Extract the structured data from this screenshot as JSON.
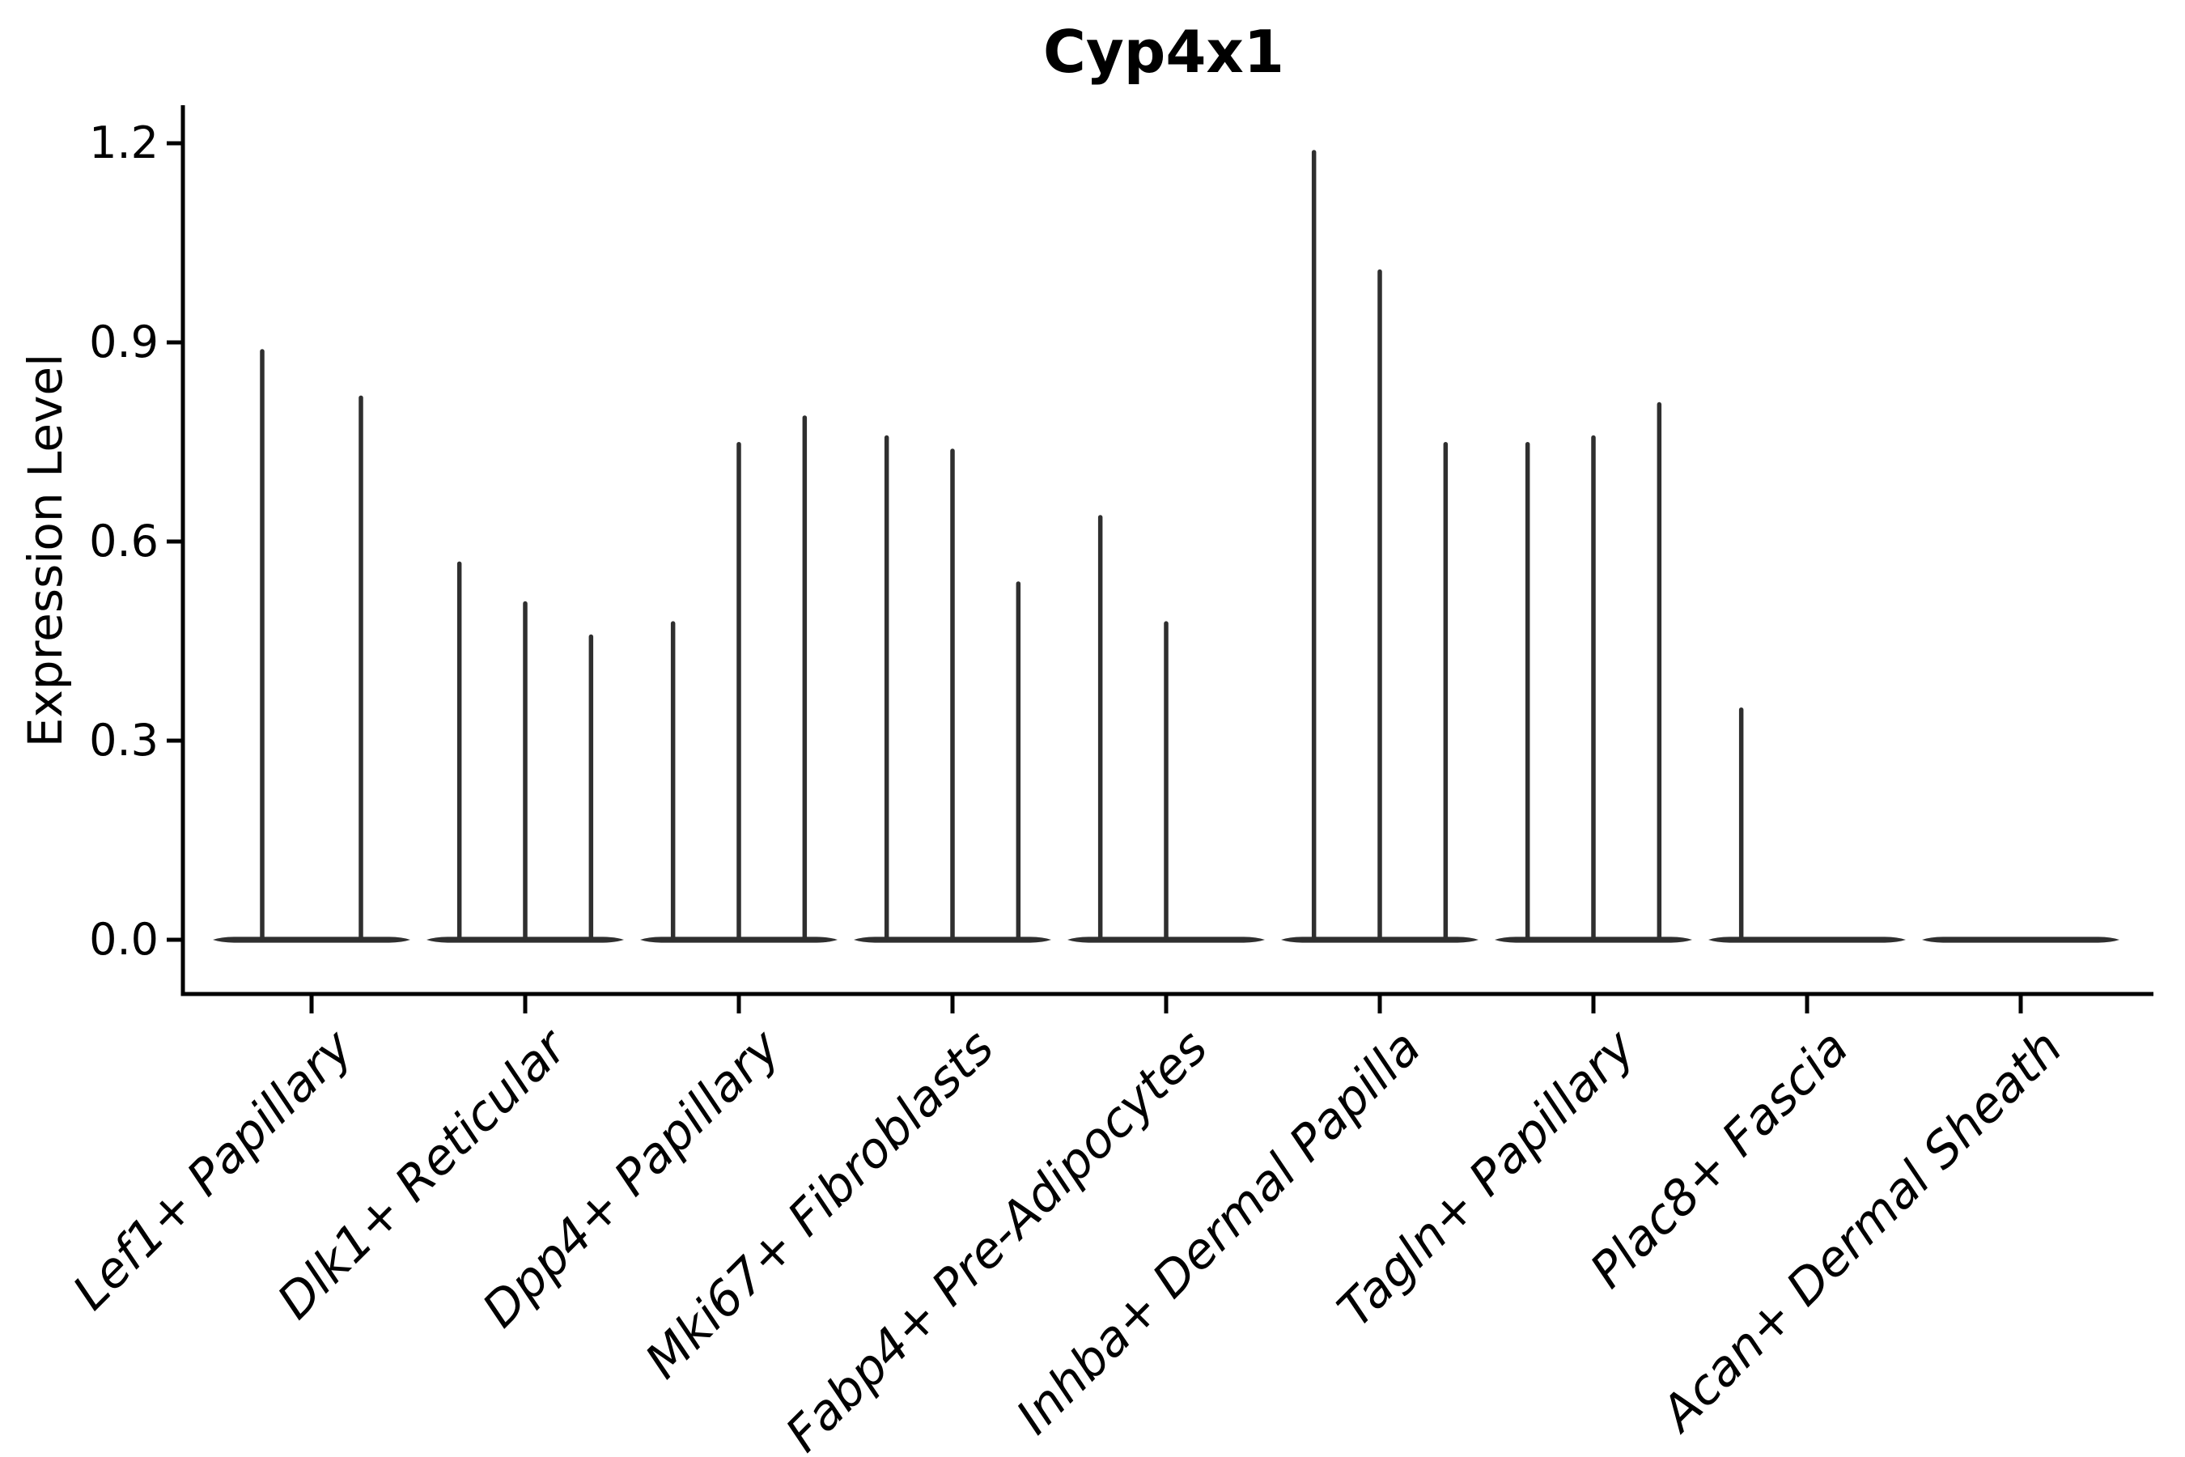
{
  "figure": {
    "background": "#ffffff"
  },
  "chart_data": {
    "type": "violin",
    "title": "Cyp4x1",
    "ylabel": "Expression Level",
    "xlabel": "",
    "ylim": [
      0,
      1.26
    ],
    "grid": false,
    "legend": "none",
    "ink_color": "#000000",
    "violin_color": "#2f2f2f",
    "yticks": [
      {
        "value": 0.0,
        "label": "0.0"
      },
      {
        "value": 0.3,
        "label": "0.3"
      },
      {
        "value": 0.6,
        "label": "0.6"
      },
      {
        "value": 0.9,
        "label": "0.9"
      },
      {
        "value": 1.2,
        "label": "1.2"
      }
    ],
    "categories": [
      {
        "label": "Lef1+ Papillary",
        "violin_maxima": [
          0.89,
          0.82
        ]
      },
      {
        "label": "Dlk1+ Reticular",
        "violin_maxima": [
          0.57,
          0.51,
          0.46
        ]
      },
      {
        "label": "Dpp4+ Papillary",
        "violin_maxima": [
          0.48,
          0.75,
          0.79
        ]
      },
      {
        "label": "Mki67+ Fibroblasts",
        "violin_maxima": [
          0.76,
          0.74,
          0.54
        ]
      },
      {
        "label": "Fabp4+ Pre-Adipocytes",
        "violin_maxima": [
          0.64,
          0.48,
          0
        ]
      },
      {
        "label": "Inhba+ Dermal Papilla",
        "violin_maxima": [
          1.19,
          1.01,
          0.75
        ]
      },
      {
        "label": "Tagln+ Papillary",
        "violin_maxima": [
          0.75,
          0.76,
          0.81
        ]
      },
      {
        "label": "Plac8+ Fascia",
        "violin_maxima": [
          0.35,
          0,
          0
        ]
      },
      {
        "label": "Acan+ Dermal Sheath",
        "violin_maxima": [
          0,
          0,
          0
        ]
      }
    ]
  }
}
